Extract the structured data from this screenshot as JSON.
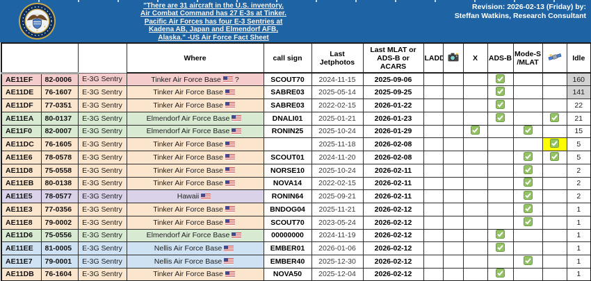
{
  "banner": {
    "quote": "\"There are 31 aircraft in the U.S. inventory.\nAir Combat Command has 27 E-3s at Tinker.\nPacific Air Forces has four E-3 Sentries at\nKadena AB, Japan and Elmendorf AFB,\nAlaska.\" -US Air Force Fact Sheet",
    "revision_line1": "Revision: 2026-02-13 (Friday) by:",
    "revision_line2": "Steffan Watkins, Research Consultant",
    "logo": "us-air-force-seal"
  },
  "colors": {
    "banner_blue": "#1e64a5",
    "check_green": "#93c163",
    "check_green_border": "#6d9f43",
    "highlight_yellow": "#ffff00",
    "idle_gray": "#d2d2d2",
    "band_pink": "#f4cccc",
    "band_orange": "#fce5cd",
    "band_green": "#d9ead3",
    "band_purple": "#d9d2e9",
    "band_blue": "#cfe2f3"
  },
  "table": {
    "headers": {
      "where": "Where",
      "callsign": "call sign",
      "jetphotos": "Last Jetphotos",
      "mlat": "Last MLAT or ADS-B or ACARS",
      "ladd": "LADD",
      "camera_icon": "camera-icon",
      "x": "X",
      "adsb": "ADS-B",
      "modes": "Mode-S /MLAT",
      "satellite_icon": "satellite-icon",
      "idle": "Idle"
    },
    "rows": [
      {
        "hex": "AE11EF",
        "serial": "82-0006",
        "type": "E-3G Sentry",
        "where": "Tinker Air Force Base",
        "flag": true,
        "where_suffix": "?",
        "callsign": "SCOUT70",
        "jetphotos": "2024-11-15",
        "mlat": "2025-09-06",
        "checks": [
          "adsb"
        ],
        "sat_highlight": false,
        "idle": "160",
        "idle_highlight": true,
        "band_color": "#f4cccc"
      },
      {
        "hex": "AE11DE",
        "serial": "76-1607",
        "type": "E-3G Sentry",
        "where": "Tinker Air Force Base",
        "flag": true,
        "where_suffix": "",
        "callsign": "SABRE03",
        "jetphotos": "2025-05-14",
        "mlat": "2025-09-25",
        "checks": [
          "adsb"
        ],
        "sat_highlight": false,
        "idle": "141",
        "idle_highlight": true,
        "band_color": "#fce5cd"
      },
      {
        "hex": "AE11DF",
        "serial": "77-0351",
        "type": "E-3G Sentry",
        "where": "Tinker Air Force Base",
        "flag": true,
        "where_suffix": "",
        "callsign": "SABRE03",
        "jetphotos": "2022-02-15",
        "mlat": "2026-01-22",
        "checks": [
          "adsb"
        ],
        "sat_highlight": false,
        "idle": "22",
        "idle_highlight": false,
        "band_color": "#fce5cd"
      },
      {
        "hex": "AE11EA",
        "serial": "80-0137",
        "type": "E-3G Sentry",
        "where": "Elmendorf Air Force Base",
        "flag": true,
        "where_suffix": "",
        "callsign": "DNALI01",
        "jetphotos": "2025-01-21",
        "mlat": "2026-01-23",
        "checks": [
          "adsb",
          "sat"
        ],
        "sat_highlight": false,
        "idle": "21",
        "idle_highlight": false,
        "band_color": "#d9ead3"
      },
      {
        "hex": "AE11F0",
        "serial": "82-0007",
        "type": "E-3G Sentry",
        "where": "Elmendorf Air Force Base",
        "flag": true,
        "where_suffix": "",
        "callsign": "RONIN25",
        "jetphotos": "2025-10-24",
        "mlat": "2026-01-29",
        "checks": [
          "x",
          "modes"
        ],
        "sat_highlight": false,
        "idle": "15",
        "idle_highlight": false,
        "band_color": "#d9ead3"
      },
      {
        "hex": "AE11DC",
        "serial": "76-1605",
        "type": "E-3G Sentry",
        "where": "Tinker Air Force Base",
        "flag": true,
        "where_suffix": "",
        "callsign": "",
        "jetphotos": "2025-11-18",
        "mlat": "2026-02-08",
        "checks": [
          "sat"
        ],
        "sat_highlight": true,
        "idle": "5",
        "idle_highlight": false,
        "band_color": "#fce5cd"
      },
      {
        "hex": "AE11E6",
        "serial": "78-0578",
        "type": "E-3G Sentry",
        "where": "Tinker Air Force Base",
        "flag": true,
        "where_suffix": "",
        "callsign": "SCOUT01",
        "jetphotos": "2024-11-20",
        "mlat": "2026-02-08",
        "checks": [
          "modes",
          "sat"
        ],
        "sat_highlight": false,
        "idle": "5",
        "idle_highlight": false,
        "band_color": "#fce5cd"
      },
      {
        "hex": "AE11D8",
        "serial": "75-0558",
        "type": "E-3G Sentry",
        "where": "Tinker Air Force Base",
        "flag": true,
        "where_suffix": "",
        "callsign": "NORSE10",
        "jetphotos": "2025-10-24",
        "mlat": "2026-02-11",
        "checks": [
          "modes"
        ],
        "sat_highlight": false,
        "idle": "2",
        "idle_highlight": false,
        "band_color": "#fce5cd"
      },
      {
        "hex": "AE11EB",
        "serial": "80-0138",
        "type": "E-3G Sentry",
        "where": "Tinker Air Force Base",
        "flag": true,
        "where_suffix": "",
        "callsign": "NOVA14",
        "jetphotos": "2022-02-15",
        "mlat": "2026-02-11",
        "checks": [
          "modes"
        ],
        "sat_highlight": false,
        "idle": "2",
        "idle_highlight": false,
        "band_color": "#fce5cd"
      },
      {
        "hex": "AE11E5",
        "serial": "78-0577",
        "type": "E-3G Sentry",
        "where": "Hawaii",
        "flag": true,
        "where_suffix": "",
        "callsign": "RONIN64",
        "jetphotos": "2025-09-21",
        "mlat": "2026-02-11",
        "checks": [
          "modes"
        ],
        "sat_highlight": false,
        "idle": "2",
        "idle_highlight": false,
        "band_color": "#d9d2e9"
      },
      {
        "hex": "AE11E3",
        "serial": "77-0356",
        "type": "E-3G Sentry",
        "where": "Tinker Air Force Base",
        "flag": true,
        "where_suffix": "",
        "callsign": "BNDOG04",
        "jetphotos": "2025-11-21",
        "mlat": "2026-02-12",
        "checks": [
          "modes"
        ],
        "sat_highlight": false,
        "idle": "1",
        "idle_highlight": false,
        "band_color": "#fce5cd"
      },
      {
        "hex": "AE11E8",
        "serial": "79-0002",
        "type": "E-3G Sentry",
        "where": "Tinker Air Force Base",
        "flag": true,
        "where_suffix": "",
        "callsign": "SCOUT70",
        "jetphotos": "2023-05-24",
        "mlat": "2026-02-12",
        "checks": [
          "modes"
        ],
        "sat_highlight": false,
        "idle": "1",
        "idle_highlight": false,
        "band_color": "#fce5cd"
      },
      {
        "hex": "AE11D6",
        "serial": "75-0556",
        "type": "E-3G Sentry",
        "where": "Elmendorf Air Force Base",
        "flag": true,
        "where_suffix": "",
        "callsign": "00000000",
        "jetphotos": "2024-11-19",
        "mlat": "2026-02-12",
        "checks": [
          "adsb"
        ],
        "sat_highlight": false,
        "idle": "1",
        "idle_highlight": false,
        "band_color": "#d9ead3"
      },
      {
        "hex": "AE11EE",
        "serial": "81-0005",
        "type": "E-3G Sentry",
        "where": "Nellis Air Force Base",
        "flag": true,
        "where_suffix": "",
        "callsign": "EMBER01",
        "jetphotos": "2026-01-06",
        "mlat": "2026-02-12",
        "checks": [
          "adsb"
        ],
        "sat_highlight": false,
        "idle": "1",
        "idle_highlight": false,
        "band_color": "#cfe2f3"
      },
      {
        "hex": "AE11E7",
        "serial": "79-0001",
        "type": "E-3G Sentry",
        "where": "Nellis Air Force Base",
        "flag": true,
        "where_suffix": "",
        "callsign": "EMBER40",
        "jetphotos": "2025-12-30",
        "mlat": "2026-02-12",
        "checks": [
          "modes"
        ],
        "sat_highlight": false,
        "idle": "1",
        "idle_highlight": false,
        "band_color": "#cfe2f3"
      },
      {
        "hex": "AE11DB",
        "serial": "76-1604",
        "type": "E-3G Sentry",
        "where": "Tinker Air Force Base",
        "flag": true,
        "where_suffix": "",
        "callsign": "NOVA50",
        "jetphotos": "2025-12-04",
        "mlat": "2026-02-12",
        "checks": [
          "adsb"
        ],
        "sat_highlight": false,
        "idle": "1",
        "idle_highlight": false,
        "band_color": "#fce5cd"
      }
    ]
  }
}
